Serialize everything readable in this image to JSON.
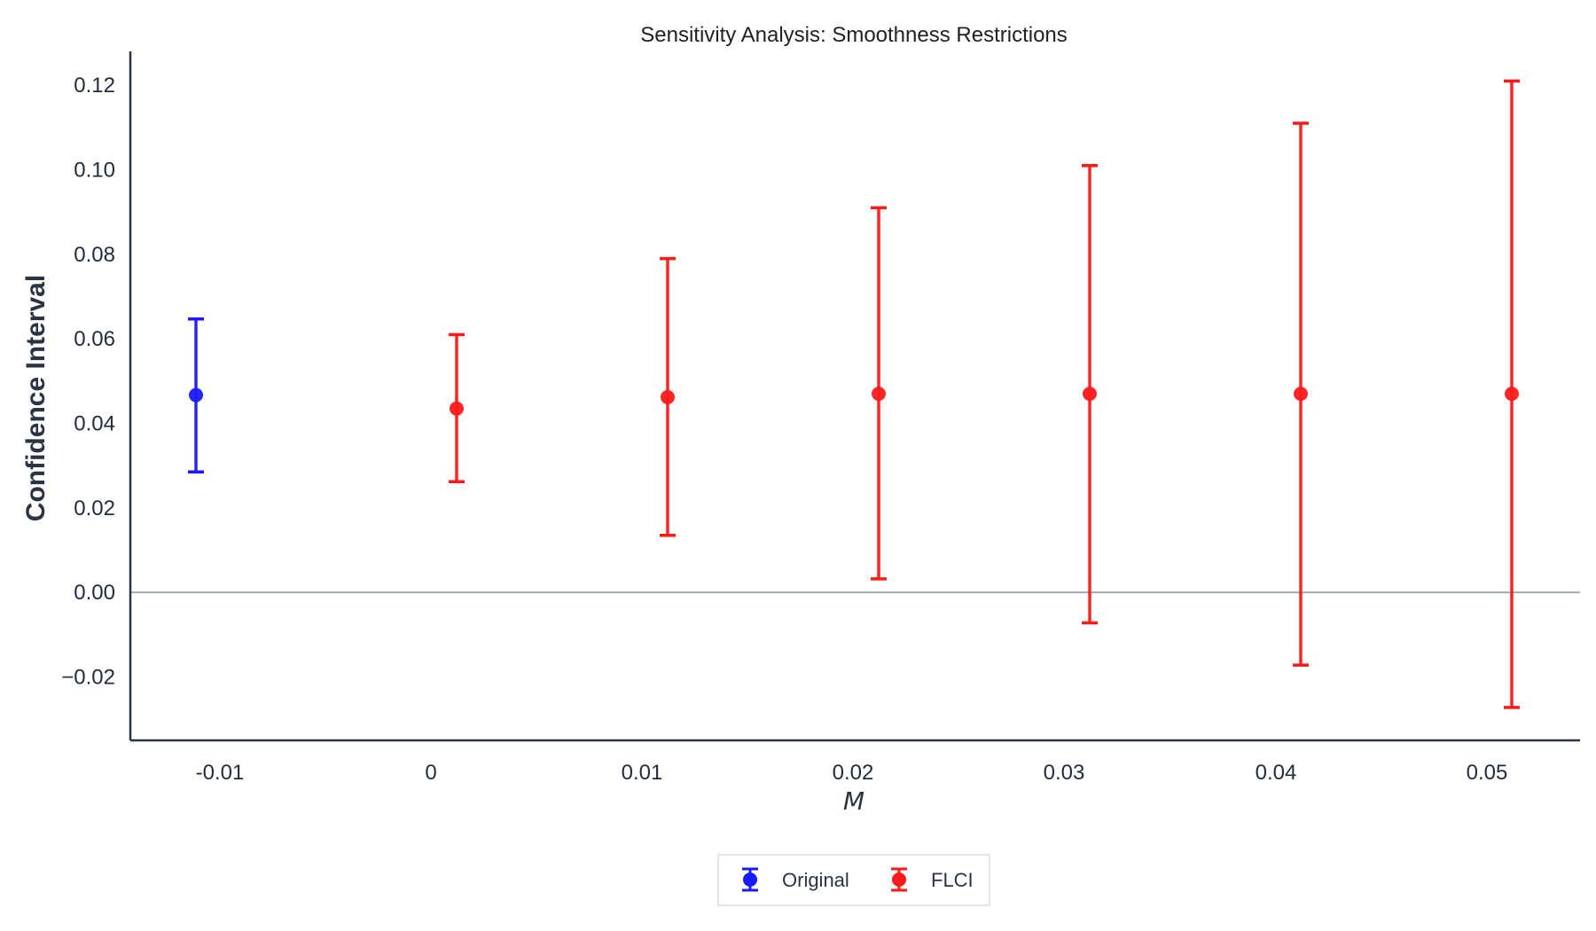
{
  "chart_data": {
    "type": "errorbar",
    "title": "Sensitivity Analysis: Smoothness Restrictions",
    "xlabel": "M",
    "ylabel": "Confidence Interval",
    "ylim": [
      -0.035,
      0.128
    ],
    "yticks": [
      -0.02,
      0.0,
      0.02,
      0.04,
      0.06,
      0.08,
      0.1,
      0.12
    ],
    "ytick_labels": [
      "−0.02",
      "0.00",
      "0.02",
      "0.04",
      "0.06",
      "0.08",
      "0.10",
      "0.12"
    ],
    "xtick_labels": [
      "-0.01",
      "0",
      "0.01",
      "0.02",
      "0.03",
      "0.04",
      "0.05"
    ],
    "reference_line_y": 0.0,
    "grid": false,
    "legend_position": "bottom-center",
    "series": [
      {
        "name": "Original",
        "color": "#1a1aff",
        "points": [
          {
            "m": "-0.01",
            "estimate": 0.0467,
            "lower": 0.0285,
            "upper": 0.0647
          }
        ]
      },
      {
        "name": "FLCI",
        "color": "#ff1a1a",
        "points": [
          {
            "m": "0",
            "estimate": 0.0435,
            "lower": 0.0262,
            "upper": 0.061
          },
          {
            "m": "0.01",
            "estimate": 0.0462,
            "lower": 0.0135,
            "upper": 0.079
          },
          {
            "m": "0.02",
            "estimate": 0.047,
            "lower": 0.0032,
            "upper": 0.091
          },
          {
            "m": "0.03",
            "estimate": 0.047,
            "lower": -0.0072,
            "upper": 0.101
          },
          {
            "m": "0.04",
            "estimate": 0.047,
            "lower": -0.0172,
            "upper": 0.111
          },
          {
            "m": "0.05",
            "estimate": 0.047,
            "lower": -0.0272,
            "upper": 0.121
          }
        ]
      }
    ]
  }
}
